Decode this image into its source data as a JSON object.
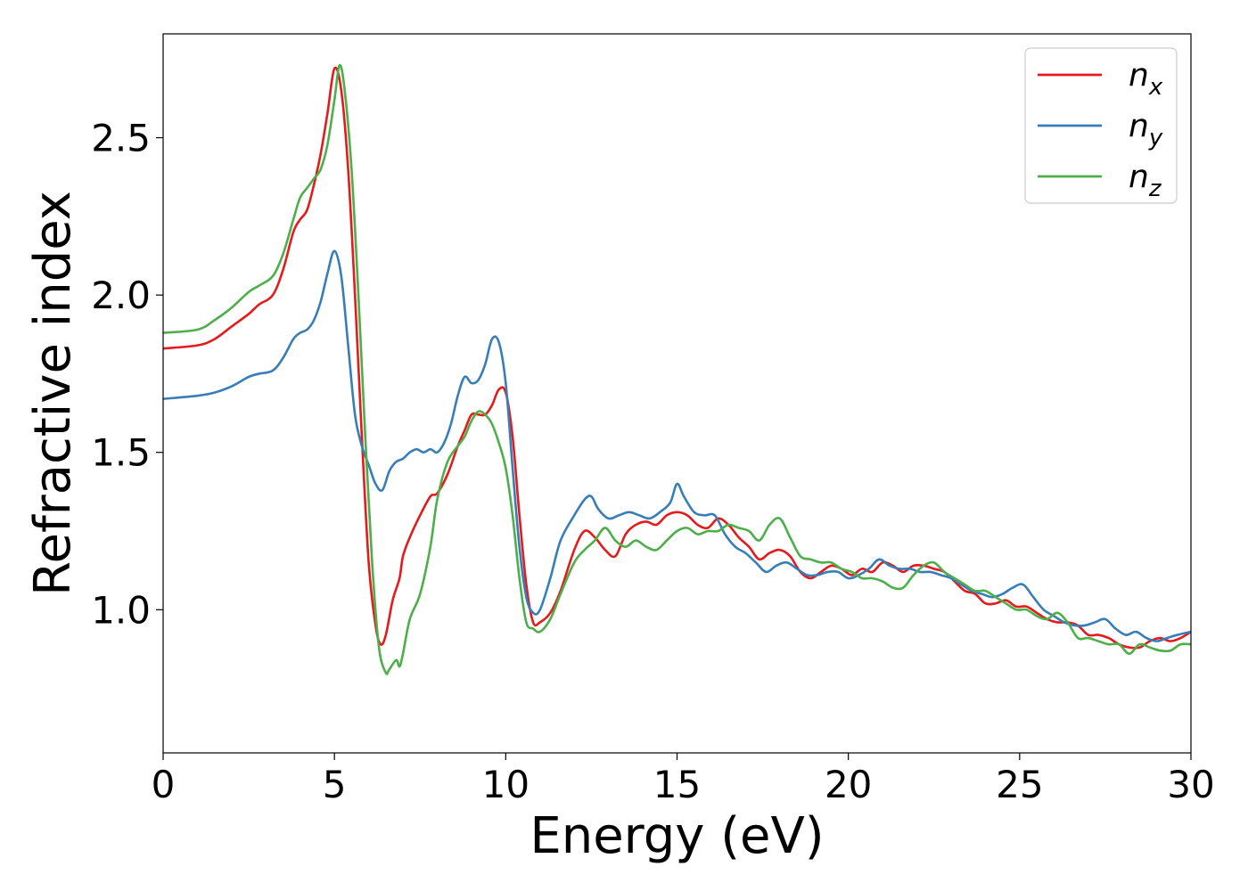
{
  "chart_data": {
    "type": "line",
    "xlabel": "Energy (eV)",
    "ylabel": "Refractive index",
    "xlim": [
      0,
      30
    ],
    "ylim": [
      0.545,
      2.83
    ],
    "xticks": [
      0,
      5,
      10,
      15,
      20,
      25,
      30
    ],
    "xtick_labels": [
      "0",
      "5",
      "10",
      "15",
      "20",
      "25",
      "30"
    ],
    "yticks": [
      1.0,
      1.5,
      2.0,
      2.5
    ],
    "ytick_labels": [
      "1.0",
      "1.5",
      "2.0",
      "2.5"
    ],
    "grid": false,
    "legend_position": "top-right",
    "series": [
      {
        "name": "n",
        "subscript": "x",
        "color": "#e41a1c",
        "x": [
          0,
          1,
          1.5,
          2,
          2.5,
          2.8,
          3.2,
          3.5,
          3.8,
          4.0,
          4.2,
          4.4,
          4.6,
          4.8,
          5.0,
          5.2,
          5.4,
          5.6,
          5.8,
          6.0,
          6.2,
          6.35,
          6.5,
          6.7,
          6.9,
          7.0,
          7.2,
          7.5,
          7.8,
          8.0,
          8.3,
          8.6,
          8.8,
          9.0,
          9.2,
          9.4,
          9.6,
          9.8,
          10.0,
          10.2,
          10.4,
          10.6,
          10.8,
          11.0,
          11.3,
          11.6,
          12.0,
          12.3,
          12.6,
          12.9,
          13.2,
          13.5,
          13.8,
          14.1,
          14.4,
          14.7,
          15.0,
          15.3,
          15.6,
          15.9,
          16.2,
          16.5,
          16.8,
          17.1,
          17.4,
          17.7,
          18.0,
          18.3,
          18.6,
          18.9,
          19.2,
          19.5,
          19.8,
          20.1,
          20.4,
          20.7,
          21.0,
          21.3,
          21.6,
          21.9,
          22.2,
          22.5,
          22.8,
          23.1,
          23.4,
          23.7,
          24.0,
          24.3,
          24.6,
          24.9,
          25.2,
          25.5,
          25.8,
          26.1,
          26.4,
          26.7,
          27.0,
          27.3,
          27.6,
          27.9,
          28.2,
          28.5,
          28.8,
          29.1,
          29.4,
          29.7,
          30.0
        ],
        "y": [
          1.83,
          1.84,
          1.86,
          1.9,
          1.94,
          1.97,
          2.0,
          2.08,
          2.2,
          2.24,
          2.27,
          2.35,
          2.45,
          2.58,
          2.72,
          2.65,
          2.4,
          2.0,
          1.55,
          1.15,
          0.95,
          0.89,
          0.92,
          1.03,
          1.1,
          1.17,
          1.23,
          1.3,
          1.36,
          1.37,
          1.43,
          1.52,
          1.57,
          1.62,
          1.62,
          1.62,
          1.65,
          1.7,
          1.69,
          1.55,
          1.3,
          1.08,
          0.96,
          0.96,
          0.99,
          1.06,
          1.19,
          1.25,
          1.23,
          1.19,
          1.17,
          1.24,
          1.27,
          1.28,
          1.27,
          1.3,
          1.31,
          1.3,
          1.27,
          1.26,
          1.29,
          1.27,
          1.23,
          1.2,
          1.16,
          1.18,
          1.19,
          1.17,
          1.12,
          1.1,
          1.12,
          1.14,
          1.13,
          1.11,
          1.13,
          1.12,
          1.15,
          1.14,
          1.12,
          1.14,
          1.14,
          1.13,
          1.12,
          1.09,
          1.06,
          1.05,
          1.02,
          1.02,
          1.03,
          1.01,
          1.01,
          0.99,
          0.97,
          0.96,
          0.96,
          0.95,
          0.92,
          0.92,
          0.91,
          0.89,
          0.88,
          0.88,
          0.9,
          0.91,
          0.9,
          0.91,
          0.93
        ]
      },
      {
        "name": "n",
        "subscript": "y",
        "color": "#377eb8",
        "x": [
          0,
          1,
          1.5,
          2,
          2.5,
          2.8,
          3.2,
          3.5,
          3.8,
          4.0,
          4.2,
          4.4,
          4.6,
          4.8,
          5.0,
          5.2,
          5.4,
          5.6,
          5.8,
          6.0,
          6.2,
          6.4,
          6.6,
          6.8,
          7.0,
          7.2,
          7.4,
          7.6,
          7.8,
          8.0,
          8.2,
          8.4,
          8.6,
          8.8,
          9.0,
          9.2,
          9.4,
          9.6,
          9.8,
          10.0,
          10.2,
          10.4,
          10.6,
          10.8,
          11.0,
          11.3,
          11.6,
          12.0,
          12.3,
          12.5,
          12.7,
          13.0,
          13.3,
          13.6,
          13.9,
          14.2,
          14.5,
          14.8,
          15.0,
          15.2,
          15.5,
          15.8,
          16.1,
          16.4,
          16.7,
          17.0,
          17.3,
          17.6,
          17.9,
          18.2,
          18.5,
          18.8,
          19.1,
          19.4,
          19.7,
          20.0,
          20.3,
          20.6,
          20.9,
          21.2,
          21.5,
          21.8,
          22.1,
          22.4,
          22.7,
          23.0,
          23.3,
          23.6,
          23.9,
          24.2,
          24.5,
          24.8,
          25.1,
          25.4,
          25.7,
          26.0,
          26.3,
          26.6,
          26.9,
          27.2,
          27.5,
          27.8,
          28.1,
          28.4,
          28.7,
          29.0,
          29.3,
          29.6,
          30.0
        ],
        "y": [
          1.67,
          1.68,
          1.69,
          1.71,
          1.74,
          1.75,
          1.76,
          1.8,
          1.86,
          1.88,
          1.89,
          1.92,
          1.98,
          2.07,
          2.14,
          2.06,
          1.84,
          1.62,
          1.52,
          1.46,
          1.4,
          1.38,
          1.44,
          1.47,
          1.48,
          1.5,
          1.51,
          1.5,
          1.51,
          1.5,
          1.53,
          1.59,
          1.68,
          1.74,
          1.72,
          1.73,
          1.78,
          1.86,
          1.85,
          1.72,
          1.45,
          1.2,
          1.04,
          0.99,
          1.0,
          1.1,
          1.22,
          1.3,
          1.35,
          1.36,
          1.32,
          1.29,
          1.3,
          1.31,
          1.3,
          1.29,
          1.31,
          1.34,
          1.4,
          1.36,
          1.31,
          1.3,
          1.3,
          1.24,
          1.2,
          1.18,
          1.15,
          1.12,
          1.14,
          1.15,
          1.13,
          1.11,
          1.11,
          1.12,
          1.12,
          1.1,
          1.11,
          1.13,
          1.16,
          1.14,
          1.13,
          1.13,
          1.12,
          1.12,
          1.11,
          1.1,
          1.08,
          1.06,
          1.05,
          1.04,
          1.05,
          1.07,
          1.08,
          1.04,
          1.0,
          0.98,
          0.96,
          0.95,
          0.95,
          0.96,
          0.97,
          0.94,
          0.92,
          0.93,
          0.91,
          0.9,
          0.91,
          0.92,
          0.93
        ]
      },
      {
        "name": "n",
        "subscript": "z",
        "color": "#4daf4a",
        "x": [
          0,
          1,
          1.5,
          2,
          2.5,
          2.8,
          3.2,
          3.5,
          3.8,
          4.0,
          4.2,
          4.4,
          4.6,
          4.8,
          5.0,
          5.15,
          5.3,
          5.5,
          5.7,
          5.9,
          6.1,
          6.3,
          6.5,
          6.6,
          6.8,
          6.9,
          7.0,
          7.2,
          7.5,
          7.8,
          8.0,
          8.3,
          8.6,
          8.8,
          9.0,
          9.2,
          9.4,
          9.6,
          9.8,
          10.0,
          10.2,
          10.4,
          10.6,
          10.8,
          11.0,
          11.3,
          11.6,
          12.0,
          12.3,
          12.6,
          12.9,
          13.2,
          13.5,
          13.8,
          14.1,
          14.4,
          14.7,
          15.0,
          15.3,
          15.6,
          15.9,
          16.2,
          16.5,
          16.8,
          17.1,
          17.4,
          17.7,
          18.0,
          18.3,
          18.6,
          18.9,
          19.2,
          19.5,
          19.8,
          20.1,
          20.4,
          20.7,
          21.0,
          21.3,
          21.6,
          21.9,
          22.2,
          22.5,
          22.8,
          23.1,
          23.4,
          23.7,
          24.0,
          24.3,
          24.6,
          24.9,
          25.2,
          25.5,
          25.8,
          26.1,
          26.4,
          26.7,
          27.0,
          27.3,
          27.6,
          27.9,
          28.2,
          28.5,
          28.8,
          29.1,
          29.4,
          29.7,
          30.0
        ],
        "y": [
          1.88,
          1.89,
          1.92,
          1.96,
          2.01,
          2.03,
          2.06,
          2.13,
          2.24,
          2.31,
          2.34,
          2.37,
          2.4,
          2.48,
          2.62,
          2.73,
          2.65,
          2.4,
          2.0,
          1.55,
          1.15,
          0.88,
          0.8,
          0.81,
          0.84,
          0.82,
          0.86,
          0.97,
          1.05,
          1.2,
          1.35,
          1.47,
          1.52,
          1.55,
          1.6,
          1.63,
          1.62,
          1.59,
          1.53,
          1.45,
          1.3,
          1.1,
          0.96,
          0.94,
          0.93,
          0.97,
          1.05,
          1.15,
          1.19,
          1.22,
          1.26,
          1.22,
          1.2,
          1.22,
          1.2,
          1.19,
          1.22,
          1.25,
          1.26,
          1.24,
          1.25,
          1.25,
          1.27,
          1.26,
          1.25,
          1.22,
          1.27,
          1.29,
          1.23,
          1.17,
          1.16,
          1.15,
          1.15,
          1.13,
          1.12,
          1.1,
          1.1,
          1.09,
          1.07,
          1.07,
          1.11,
          1.14,
          1.15,
          1.12,
          1.1,
          1.08,
          1.06,
          1.06,
          1.04,
          1.02,
          1.0,
          1.0,
          0.98,
          0.97,
          0.99,
          0.96,
          0.91,
          0.91,
          0.9,
          0.89,
          0.89,
          0.86,
          0.89,
          0.88,
          0.87,
          0.87,
          0.89,
          0.89
        ]
      }
    ]
  }
}
